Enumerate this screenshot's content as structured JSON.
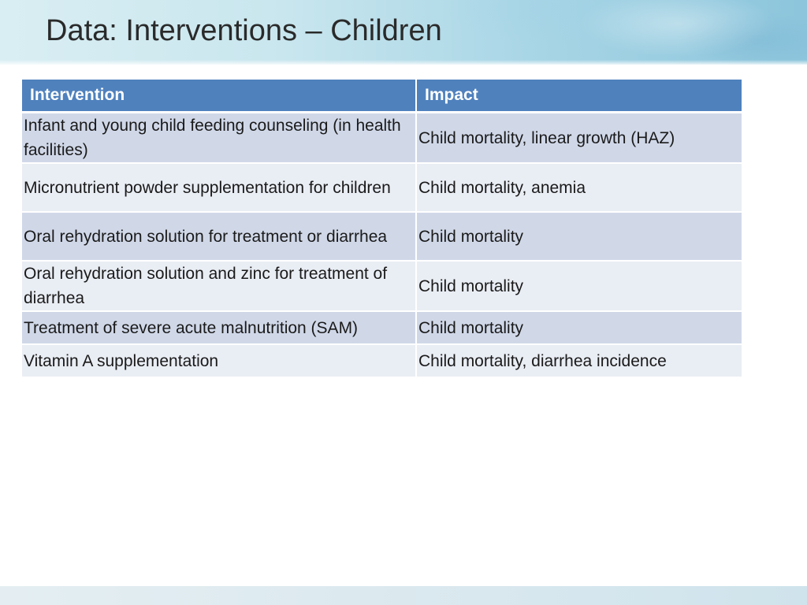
{
  "slide": {
    "title": "Data: Interventions – Children"
  },
  "table": {
    "headers": [
      "Intervention",
      "Impact"
    ],
    "rows": [
      {
        "intervention": "Infant and young child feeding counseling (in health facilities)",
        "impact": "Child mortality, linear growth (HAZ)"
      },
      {
        "intervention": "Micronutrient powder supplementation for children",
        "impact": "Child mortality, anemia"
      },
      {
        "intervention": "Oral rehydration solution for treatment or diarrhea",
        "impact": "Child mortality"
      },
      {
        "intervention": "Oral rehydration solution and zinc for treatment of diarrhea",
        "impact": "Child mortality"
      },
      {
        "intervention": "Treatment of severe acute malnutrition (SAM)",
        "impact": "Child mortality"
      },
      {
        "intervention": "Vitamin A supplementation",
        "impact": "Child mortality, diarrhea incidence"
      }
    ]
  },
  "colors": {
    "header_fill": "#4f81bd",
    "row_odd_fill": "#d0d8e8",
    "row_even_fill": "#e9edf4"
  }
}
